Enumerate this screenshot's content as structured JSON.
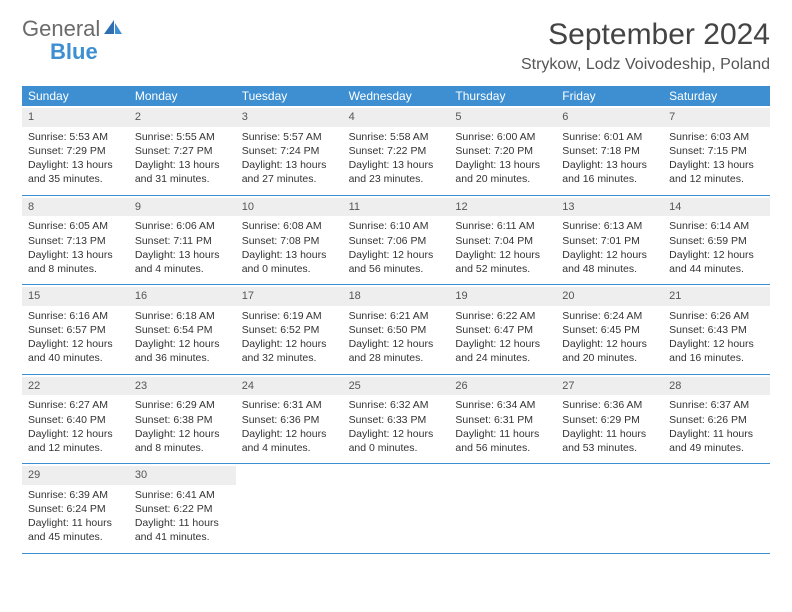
{
  "logo": {
    "general": "General",
    "blue": "Blue"
  },
  "title": "September 2024",
  "location": "Strykow, Lodz Voivodeship, Poland",
  "colors": {
    "header_bg": "#3d8fd1",
    "daynum_bg": "#eeeeee",
    "row_border": "#3d8fd1",
    "text": "#333333",
    "logo_gray": "#6b6b6b",
    "logo_blue": "#3d8fd1",
    "page_bg": "#ffffff"
  },
  "weekdays": [
    "Sunday",
    "Monday",
    "Tuesday",
    "Wednesday",
    "Thursday",
    "Friday",
    "Saturday"
  ],
  "weeks": [
    [
      {
        "n": "1",
        "sr": "Sunrise: 5:53 AM",
        "ss": "Sunset: 7:29 PM",
        "d1": "Daylight: 13 hours",
        "d2": "and 35 minutes."
      },
      {
        "n": "2",
        "sr": "Sunrise: 5:55 AM",
        "ss": "Sunset: 7:27 PM",
        "d1": "Daylight: 13 hours",
        "d2": "and 31 minutes."
      },
      {
        "n": "3",
        "sr": "Sunrise: 5:57 AM",
        "ss": "Sunset: 7:24 PM",
        "d1": "Daylight: 13 hours",
        "d2": "and 27 minutes."
      },
      {
        "n": "4",
        "sr": "Sunrise: 5:58 AM",
        "ss": "Sunset: 7:22 PM",
        "d1": "Daylight: 13 hours",
        "d2": "and 23 minutes."
      },
      {
        "n": "5",
        "sr": "Sunrise: 6:00 AM",
        "ss": "Sunset: 7:20 PM",
        "d1": "Daylight: 13 hours",
        "d2": "and 20 minutes."
      },
      {
        "n": "6",
        "sr": "Sunrise: 6:01 AM",
        "ss": "Sunset: 7:18 PM",
        "d1": "Daylight: 13 hours",
        "d2": "and 16 minutes."
      },
      {
        "n": "7",
        "sr": "Sunrise: 6:03 AM",
        "ss": "Sunset: 7:15 PM",
        "d1": "Daylight: 13 hours",
        "d2": "and 12 minutes."
      }
    ],
    [
      {
        "n": "8",
        "sr": "Sunrise: 6:05 AM",
        "ss": "Sunset: 7:13 PM",
        "d1": "Daylight: 13 hours",
        "d2": "and 8 minutes."
      },
      {
        "n": "9",
        "sr": "Sunrise: 6:06 AM",
        "ss": "Sunset: 7:11 PM",
        "d1": "Daylight: 13 hours",
        "d2": "and 4 minutes."
      },
      {
        "n": "10",
        "sr": "Sunrise: 6:08 AM",
        "ss": "Sunset: 7:08 PM",
        "d1": "Daylight: 13 hours",
        "d2": "and 0 minutes."
      },
      {
        "n": "11",
        "sr": "Sunrise: 6:10 AM",
        "ss": "Sunset: 7:06 PM",
        "d1": "Daylight: 12 hours",
        "d2": "and 56 minutes."
      },
      {
        "n": "12",
        "sr": "Sunrise: 6:11 AM",
        "ss": "Sunset: 7:04 PM",
        "d1": "Daylight: 12 hours",
        "d2": "and 52 minutes."
      },
      {
        "n": "13",
        "sr": "Sunrise: 6:13 AM",
        "ss": "Sunset: 7:01 PM",
        "d1": "Daylight: 12 hours",
        "d2": "and 48 minutes."
      },
      {
        "n": "14",
        "sr": "Sunrise: 6:14 AM",
        "ss": "Sunset: 6:59 PM",
        "d1": "Daylight: 12 hours",
        "d2": "and 44 minutes."
      }
    ],
    [
      {
        "n": "15",
        "sr": "Sunrise: 6:16 AM",
        "ss": "Sunset: 6:57 PM",
        "d1": "Daylight: 12 hours",
        "d2": "and 40 minutes."
      },
      {
        "n": "16",
        "sr": "Sunrise: 6:18 AM",
        "ss": "Sunset: 6:54 PM",
        "d1": "Daylight: 12 hours",
        "d2": "and 36 minutes."
      },
      {
        "n": "17",
        "sr": "Sunrise: 6:19 AM",
        "ss": "Sunset: 6:52 PM",
        "d1": "Daylight: 12 hours",
        "d2": "and 32 minutes."
      },
      {
        "n": "18",
        "sr": "Sunrise: 6:21 AM",
        "ss": "Sunset: 6:50 PM",
        "d1": "Daylight: 12 hours",
        "d2": "and 28 minutes."
      },
      {
        "n": "19",
        "sr": "Sunrise: 6:22 AM",
        "ss": "Sunset: 6:47 PM",
        "d1": "Daylight: 12 hours",
        "d2": "and 24 minutes."
      },
      {
        "n": "20",
        "sr": "Sunrise: 6:24 AM",
        "ss": "Sunset: 6:45 PM",
        "d1": "Daylight: 12 hours",
        "d2": "and 20 minutes."
      },
      {
        "n": "21",
        "sr": "Sunrise: 6:26 AM",
        "ss": "Sunset: 6:43 PM",
        "d1": "Daylight: 12 hours",
        "d2": "and 16 minutes."
      }
    ],
    [
      {
        "n": "22",
        "sr": "Sunrise: 6:27 AM",
        "ss": "Sunset: 6:40 PM",
        "d1": "Daylight: 12 hours",
        "d2": "and 12 minutes."
      },
      {
        "n": "23",
        "sr": "Sunrise: 6:29 AM",
        "ss": "Sunset: 6:38 PM",
        "d1": "Daylight: 12 hours",
        "d2": "and 8 minutes."
      },
      {
        "n": "24",
        "sr": "Sunrise: 6:31 AM",
        "ss": "Sunset: 6:36 PM",
        "d1": "Daylight: 12 hours",
        "d2": "and 4 minutes."
      },
      {
        "n": "25",
        "sr": "Sunrise: 6:32 AM",
        "ss": "Sunset: 6:33 PM",
        "d1": "Daylight: 12 hours",
        "d2": "and 0 minutes."
      },
      {
        "n": "26",
        "sr": "Sunrise: 6:34 AM",
        "ss": "Sunset: 6:31 PM",
        "d1": "Daylight: 11 hours",
        "d2": "and 56 minutes."
      },
      {
        "n": "27",
        "sr": "Sunrise: 6:36 AM",
        "ss": "Sunset: 6:29 PM",
        "d1": "Daylight: 11 hours",
        "d2": "and 53 minutes."
      },
      {
        "n": "28",
        "sr": "Sunrise: 6:37 AM",
        "ss": "Sunset: 6:26 PM",
        "d1": "Daylight: 11 hours",
        "d2": "and 49 minutes."
      }
    ],
    [
      {
        "n": "29",
        "sr": "Sunrise: 6:39 AM",
        "ss": "Sunset: 6:24 PM",
        "d1": "Daylight: 11 hours",
        "d2": "and 45 minutes."
      },
      {
        "n": "30",
        "sr": "Sunrise: 6:41 AM",
        "ss": "Sunset: 6:22 PM",
        "d1": "Daylight: 11 hours",
        "d2": "and 41 minutes."
      },
      {
        "empty": true
      },
      {
        "empty": true
      },
      {
        "empty": true
      },
      {
        "empty": true
      },
      {
        "empty": true
      }
    ]
  ]
}
